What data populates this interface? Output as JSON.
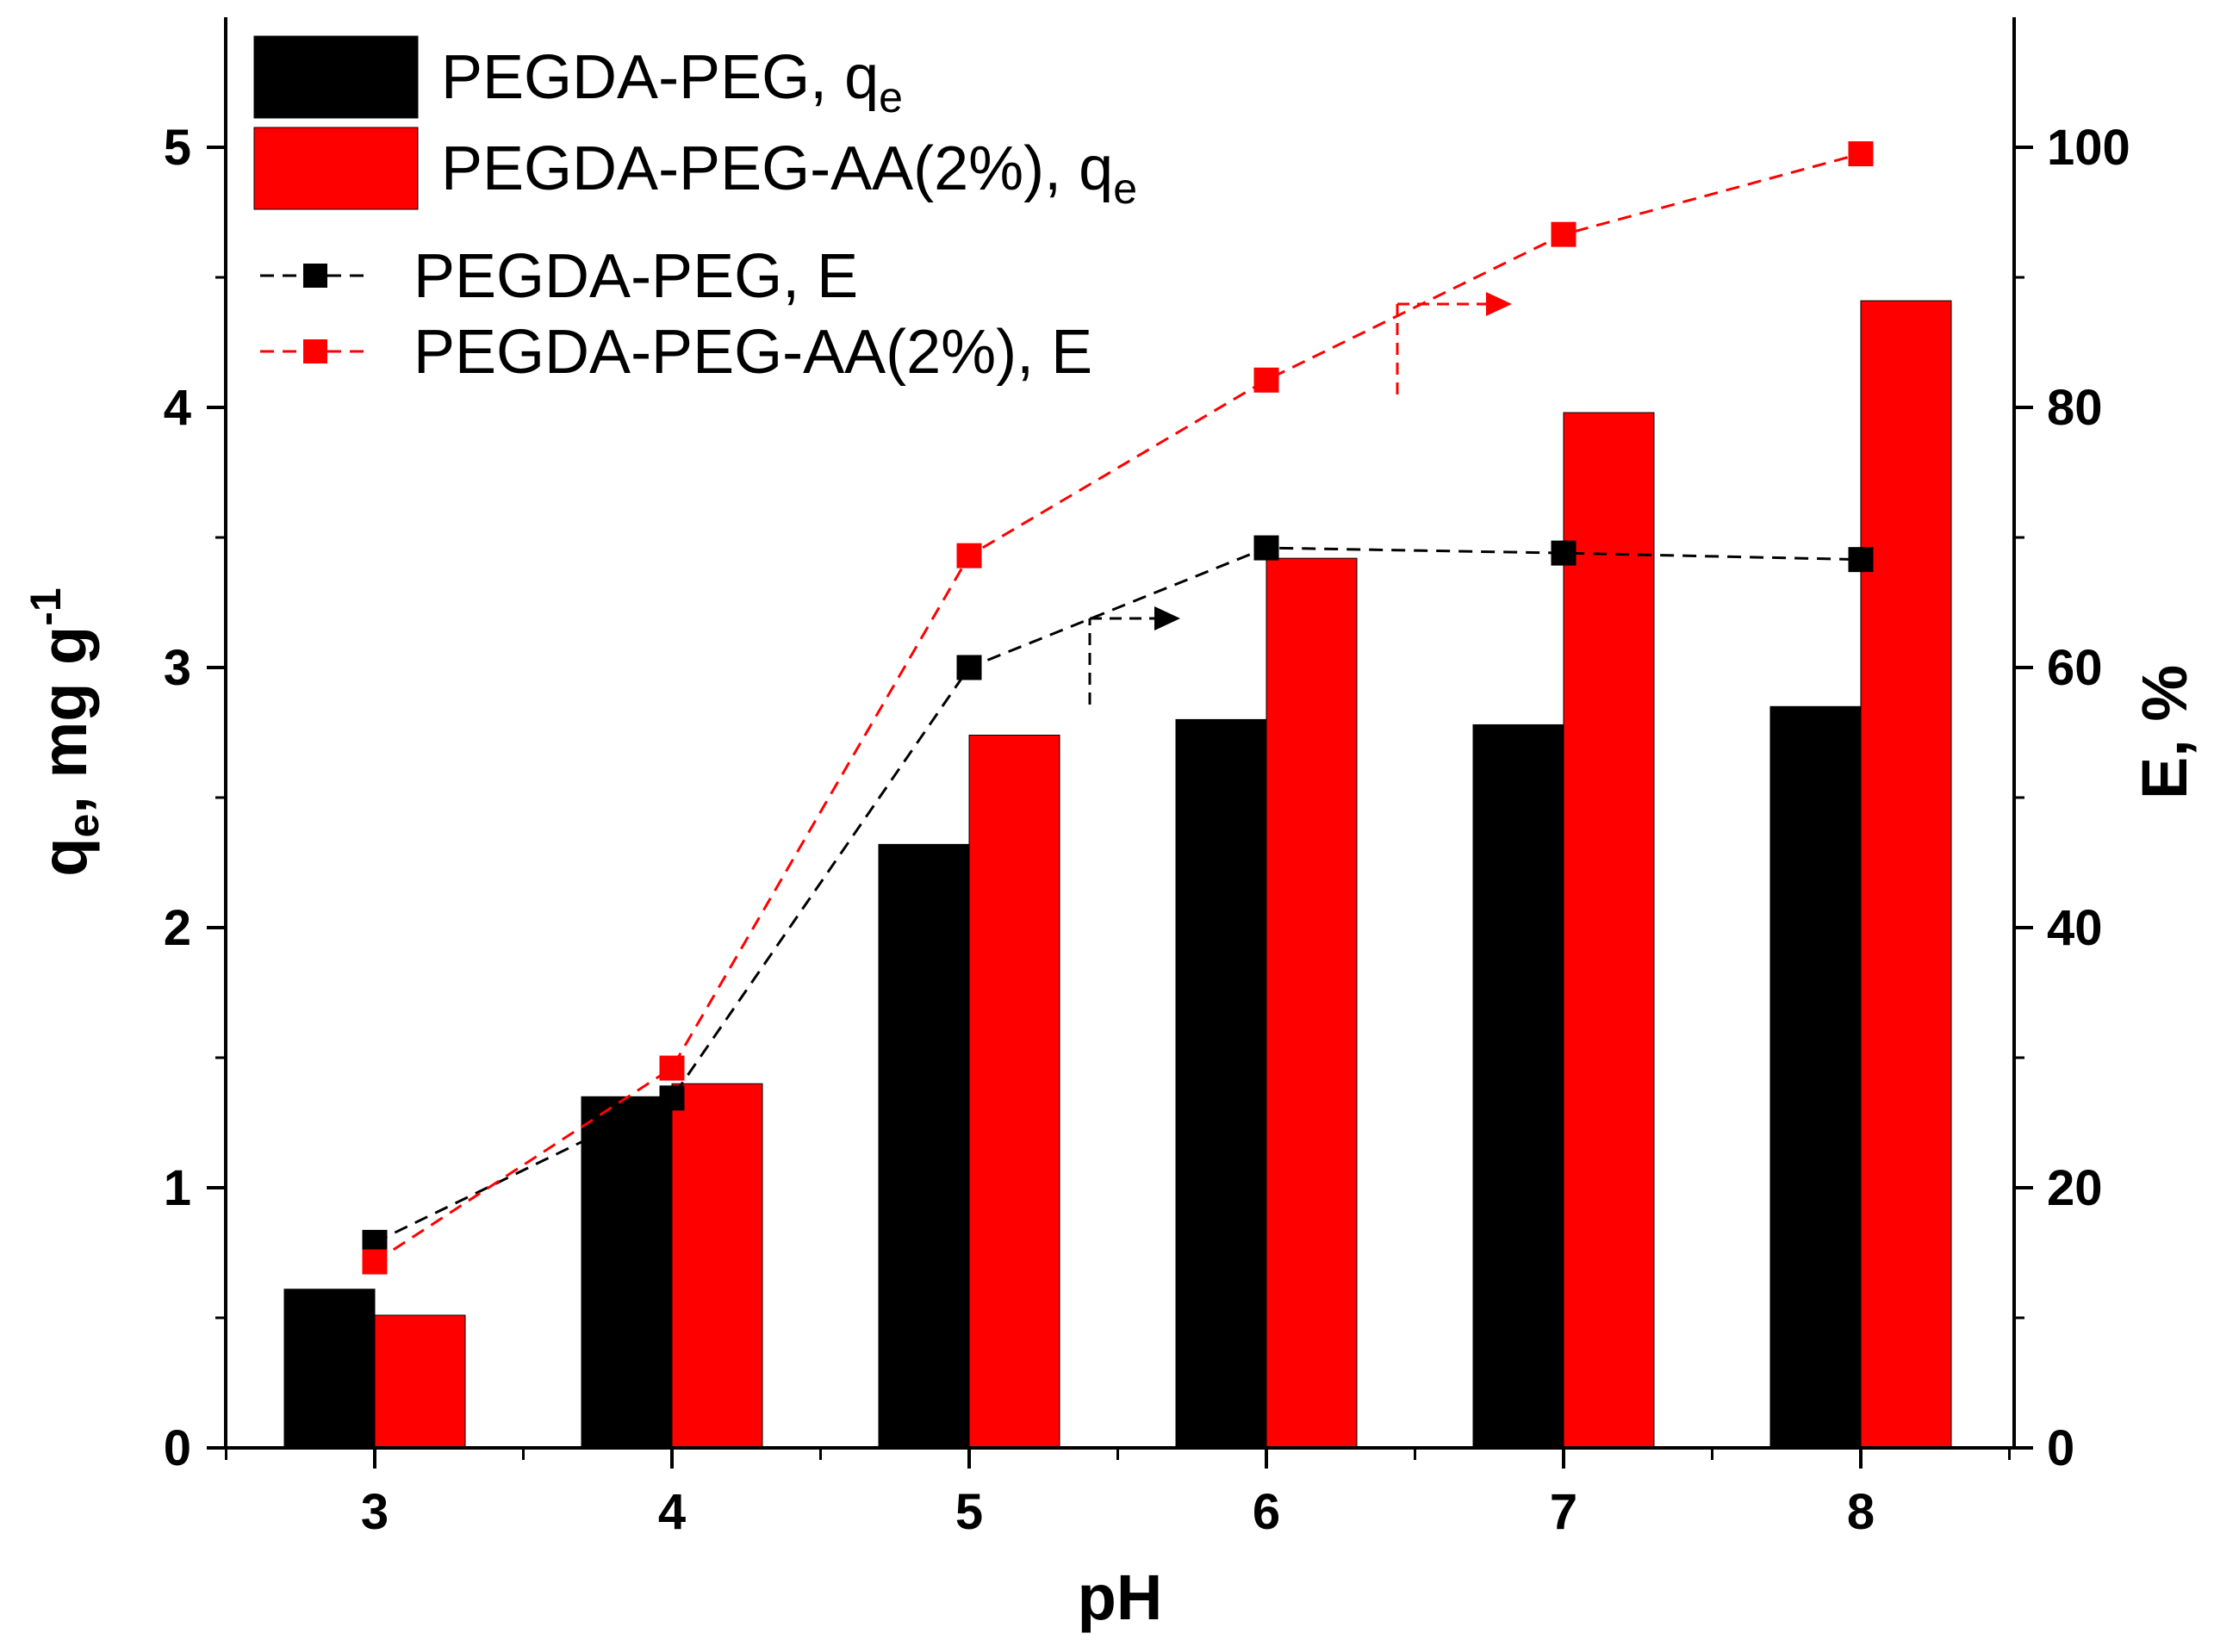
{
  "chart_data": {
    "type": "bar+line",
    "xlabel": "pH",
    "ylabel_left": {
      "main": "q",
      "sub": "e",
      "rest": ", mg g",
      "sup": "-1"
    },
    "ylabel_right": "E, %",
    "categories": [
      "3",
      "4",
      "5",
      "6",
      "7",
      "8"
    ],
    "ylim_left": [
      0,
      5.5
    ],
    "ylim_right": [
      0,
      110
    ],
    "yticks_left": [
      "0",
      "1",
      "2",
      "3",
      "4",
      "5"
    ],
    "yticks_right": [
      "0",
      "20",
      "40",
      "60",
      "80",
      "100"
    ],
    "bar_series": [
      {
        "name": "PEGDA-PEG, q",
        "name_sub": "e",
        "color": "#000000",
        "values": [
          0.61,
          1.35,
          2.32,
          2.8,
          2.78,
          2.85
        ]
      },
      {
        "name": "PEGDA-PEG-AA(2%), q",
        "name_sub": "e",
        "color": "#ff0000",
        "values": [
          0.51,
          1.4,
          2.74,
          3.42,
          3.98,
          4.41
        ]
      }
    ],
    "line_series": [
      {
        "name": "PEGDA-PEG, E",
        "color": "#000000",
        "axis": "right",
        "values": [
          15.8,
          26.9,
          60.0,
          69.2,
          68.8,
          68.3
        ]
      },
      {
        "name": "PEGDA-PEG-AA(2%), E",
        "color": "#ff0000",
        "axis": "right",
        "values": [
          14.3,
          29.2,
          68.6,
          82.1,
          93.3,
          99.5
        ]
      }
    ],
    "annotations": [
      {
        "type": "arrow-right-axis",
        "series": "PEGDA-PEG, E",
        "color": "#000000"
      },
      {
        "type": "arrow-right-axis",
        "series": "PEGDA-PEG-AA(2%), E",
        "color": "#ff0000"
      }
    ],
    "legend_position": "top-left"
  }
}
